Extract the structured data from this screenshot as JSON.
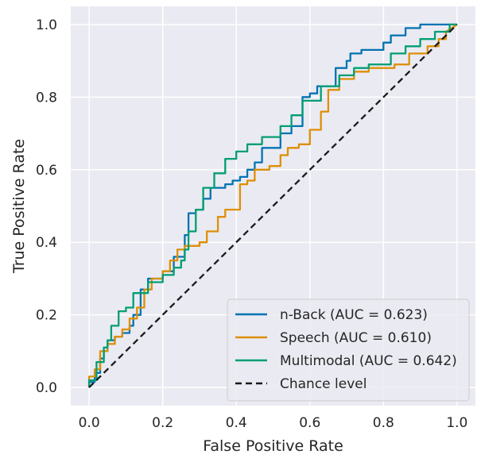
{
  "chart_data": {
    "type": "line",
    "xlabel": "False Positive Rate",
    "ylabel": "True Positive Rate",
    "xlim": [
      -0.05,
      1.05
    ],
    "ylim": [
      -0.05,
      1.05
    ],
    "xticks": [
      "0.0",
      "0.2",
      "0.4",
      "0.6",
      "0.8",
      "1.0"
    ],
    "yticks": [
      "0.0",
      "0.2",
      "0.4",
      "0.6",
      "0.8",
      "1.0"
    ],
    "grid": true,
    "legend_position": "lower-right",
    "background_color": "#eaeaf2",
    "series": [
      {
        "name": "n-Back (AUC = 0.623)",
        "color": "#0173b2",
        "x": [
          0,
          0,
          0.015,
          0.015,
          0.03,
          0.03,
          0.04,
          0.04,
          0.05,
          0.05,
          0.07,
          0.07,
          0.09,
          0.09,
          0.11,
          0.11,
          0.12,
          0.12,
          0.14,
          0.14,
          0.16,
          0.16,
          0.2,
          0.2,
          0.23,
          0.23,
          0.26,
          0.26,
          0.27,
          0.27,
          0.29,
          0.29,
          0.31,
          0.31,
          0.33,
          0.33,
          0.37,
          0.37,
          0.39,
          0.39,
          0.41,
          0.41,
          0.43,
          0.43,
          0.45,
          0.45,
          0.47,
          0.47,
          0.52,
          0.52,
          0.55,
          0.55,
          0.58,
          0.58,
          0.6,
          0.6,
          0.62,
          0.62,
          0.67,
          0.67,
          0.7,
          0.7,
          0.71,
          0.71,
          0.74,
          0.74,
          0.8,
          0.8,
          0.82,
          0.82,
          0.86,
          0.86,
          0.9,
          0.9,
          0.94,
          0.94,
          1
        ],
        "y": [
          0,
          0.015,
          0.015,
          0.04,
          0.04,
          0.08,
          0.08,
          0.1,
          0.1,
          0.13,
          0.13,
          0.14,
          0.14,
          0.15,
          0.15,
          0.17,
          0.17,
          0.2,
          0.2,
          0.27,
          0.27,
          0.3,
          0.3,
          0.32,
          0.32,
          0.36,
          0.36,
          0.42,
          0.42,
          0.48,
          0.48,
          0.49,
          0.49,
          0.52,
          0.52,
          0.55,
          0.55,
          0.56,
          0.56,
          0.57,
          0.57,
          0.58,
          0.58,
          0.6,
          0.6,
          0.62,
          0.62,
          0.66,
          0.66,
          0.7,
          0.7,
          0.72,
          0.72,
          0.8,
          0.8,
          0.81,
          0.81,
          0.83,
          0.83,
          0.88,
          0.88,
          0.9,
          0.9,
          0.92,
          0.92,
          0.93,
          0.93,
          0.95,
          0.95,
          0.97,
          0.97,
          0.99,
          0.99,
          1,
          1,
          1,
          1
        ]
      },
      {
        "name": "Speech (AUC = 0.610)",
        "color": "#de8f05",
        "x": [
          0,
          0,
          0.015,
          0.015,
          0.03,
          0.03,
          0.05,
          0.05,
          0.07,
          0.07,
          0.09,
          0.09,
          0.11,
          0.11,
          0.13,
          0.13,
          0.15,
          0.15,
          0.17,
          0.17,
          0.2,
          0.2,
          0.22,
          0.22,
          0.24,
          0.24,
          0.26,
          0.26,
          0.3,
          0.3,
          0.32,
          0.32,
          0.35,
          0.35,
          0.37,
          0.37,
          0.41,
          0.41,
          0.43,
          0.43,
          0.45,
          0.45,
          0.49,
          0.49,
          0.52,
          0.52,
          0.54,
          0.54,
          0.57,
          0.57,
          0.6,
          0.6,
          0.63,
          0.63,
          0.65,
          0.65,
          0.68,
          0.68,
          0.72,
          0.72,
          0.76,
          0.76,
          0.83,
          0.83,
          0.87,
          0.87,
          0.92,
          0.92,
          0.95,
          0.95,
          0.97,
          0.97,
          1
        ],
        "y": [
          0,
          0.03,
          0.03,
          0.05,
          0.05,
          0.1,
          0.1,
          0.12,
          0.12,
          0.14,
          0.14,
          0.16,
          0.16,
          0.19,
          0.19,
          0.22,
          0.22,
          0.27,
          0.27,
          0.3,
          0.3,
          0.32,
          0.32,
          0.35,
          0.35,
          0.38,
          0.38,
          0.39,
          0.39,
          0.4,
          0.4,
          0.43,
          0.43,
          0.47,
          0.47,
          0.49,
          0.49,
          0.56,
          0.56,
          0.57,
          0.57,
          0.6,
          0.6,
          0.61,
          0.61,
          0.64,
          0.64,
          0.66,
          0.66,
          0.67,
          0.67,
          0.71,
          0.71,
          0.76,
          0.76,
          0.82,
          0.82,
          0.85,
          0.85,
          0.87,
          0.87,
          0.88,
          0.88,
          0.89,
          0.89,
          0.92,
          0.92,
          0.94,
          0.94,
          0.96,
          0.96,
          0.98,
          1
        ]
      },
      {
        "name": "Multimodal (AUC = 0.642)",
        "color": "#029e73",
        "x": [
          0,
          0,
          0.02,
          0.02,
          0.04,
          0.04,
          0.05,
          0.05,
          0.06,
          0.06,
          0.08,
          0.08,
          0.1,
          0.1,
          0.12,
          0.12,
          0.16,
          0.16,
          0.2,
          0.2,
          0.23,
          0.23,
          0.25,
          0.25,
          0.26,
          0.26,
          0.27,
          0.27,
          0.29,
          0.29,
          0.31,
          0.31,
          0.34,
          0.34,
          0.37,
          0.37,
          0.4,
          0.4,
          0.43,
          0.43,
          0.47,
          0.47,
          0.52,
          0.52,
          0.55,
          0.55,
          0.58,
          0.58,
          0.63,
          0.63,
          0.68,
          0.68,
          0.72,
          0.72,
          0.76,
          0.76,
          0.82,
          0.82,
          0.86,
          0.86,
          0.9,
          0.9,
          0.94,
          0.94,
          0.98,
          0.98,
          1
        ],
        "y": [
          0,
          0.02,
          0.02,
          0.07,
          0.07,
          0.11,
          0.11,
          0.13,
          0.13,
          0.17,
          0.17,
          0.21,
          0.21,
          0.22,
          0.22,
          0.26,
          0.26,
          0.29,
          0.29,
          0.31,
          0.31,
          0.33,
          0.33,
          0.35,
          0.35,
          0.38,
          0.38,
          0.43,
          0.43,
          0.49,
          0.49,
          0.55,
          0.55,
          0.59,
          0.59,
          0.63,
          0.63,
          0.65,
          0.65,
          0.67,
          0.67,
          0.69,
          0.69,
          0.72,
          0.72,
          0.75,
          0.75,
          0.79,
          0.79,
          0.83,
          0.83,
          0.86,
          0.86,
          0.88,
          0.88,
          0.89,
          0.89,
          0.92,
          0.92,
          0.94,
          0.94,
          0.96,
          0.96,
          0.98,
          0.98,
          1,
          1
        ]
      },
      {
        "name": "Chance level",
        "color": "#1a1a1a",
        "dashed": true,
        "x": [
          0,
          1
        ],
        "y": [
          0,
          1
        ]
      }
    ]
  }
}
